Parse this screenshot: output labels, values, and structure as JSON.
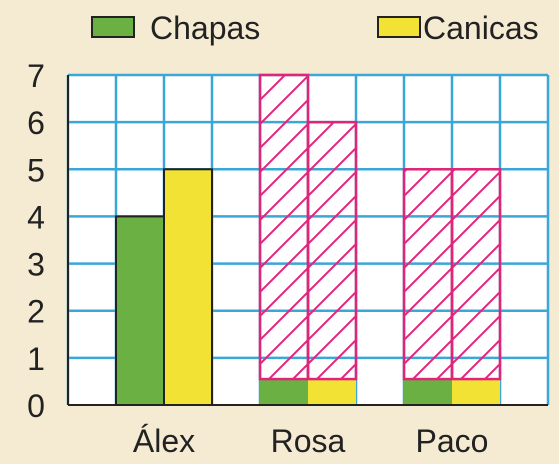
{
  "chart_data": {
    "type": "bar",
    "categories": [
      "Álex",
      "Rosa",
      "Paco"
    ],
    "series": [
      {
        "name": "Chapas",
        "values": [
          4,
          7,
          5
        ],
        "color": "#6ab043"
      },
      {
        "name": "Canicas",
        "values": [
          5,
          6,
          5
        ],
        "color": "#f2e233"
      }
    ],
    "pattern_note": "Rosa and Paco bars are outlined in magenta with diagonal hatching above a short colored base",
    "hatch_color": "#e0247a",
    "grid_color": "#3aa7d8",
    "ylim": [
      0,
      7
    ],
    "yticks": [
      "0",
      "1",
      "2",
      "3",
      "4",
      "5",
      "6",
      "7"
    ],
    "xlabel": "",
    "ylabel": "",
    "title": "",
    "grid": true,
    "legend": "top"
  }
}
